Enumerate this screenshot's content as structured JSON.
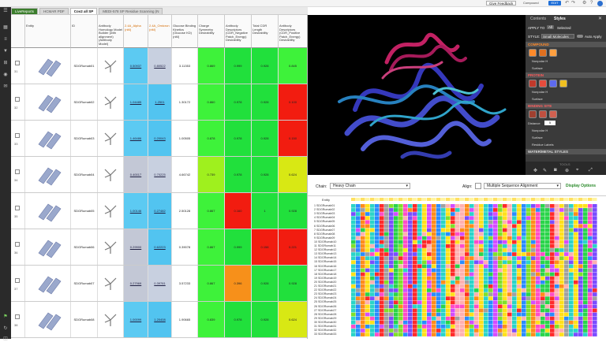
{
  "topbar": {
    "feedback": "Give Feedback",
    "edit": "EDIT",
    "compound_label": "Compound"
  },
  "tabs": [
    {
      "label": "LiveReports"
    },
    {
      "label": "HCMAR PDF"
    },
    {
      "label": "Cov2 all SP"
    },
    {
      "label": "MEDI-578 SP Residue Scanning (N"
    }
  ],
  "grid": {
    "headers": [
      "Entity",
      "ID",
      "Antibody Homology Model Builder (with alignment) (Antibody Model)",
      "2.4A_Alpha (nM)",
      "2.4A_Omicron (nM)",
      "Glucose Binding Kinetics (Glucose KD) (nM)",
      "Charge Symmetry Desirability",
      "Antibody Descriptors (CDR_Negative Patch_Energy) Desirability",
      "Total CDR Length Desirability",
      "Antibody Descriptors (CDR_Positive Patch_Energy) Desirability"
    ],
    "rows": [
      {
        "num": "31",
        "id": "SDGRumab01",
        "a": "0.50937",
        "b": "0.80522",
        "c": "3.11353",
        "d": "0.869",
        "e": "0.999",
        "f": "0.928",
        "g": "0.845"
      },
      {
        "num": "32",
        "id": "SDGRumab02",
        "a": "1.04485",
        "b": "1.2501",
        "c": "1.30172",
        "d": "0.860",
        "e": "0.978",
        "f": "0.928",
        "g": "0.100"
      },
      {
        "num": "33",
        "id": "SDGRumab03",
        "a": "1.46486",
        "b": "0.20043",
        "c": "1.00505",
        "d": "0.878",
        "e": "0.978",
        "f": "0.928",
        "g": "0.150"
      },
      {
        "num": "34",
        "id": "SDGRumab04",
        "a": "0.40017",
        "b": "0.70225",
        "c": "4.66742",
        "d": "0.739",
        "e": "0.978",
        "f": "0.928",
        "g": "0.624"
      },
      {
        "num": "35",
        "id": "SDGRumab05",
        "a": "1.00146",
        "b": "0.27482",
        "c": "2.50128",
        "d": "0.867",
        "e": "0.160",
        "f": "1",
        "g": "0.928"
      },
      {
        "num": "36",
        "id": "SDGRumab06",
        "a": "0.29900",
        "b": "0.62223",
        "c": "0.39078",
        "d": "0.867",
        "e": "0.999",
        "f": "0.158",
        "g": "0.221"
      },
      {
        "num": "37",
        "id": "SDGRumab07",
        "a": "0.27969",
        "b": "0.39781",
        "c": "3.57233",
        "d": "0.867",
        "e": "0.396",
        "f": "0.928",
        "g": "0.928"
      },
      {
        "num": "38",
        "id": "SDGRumab08",
        "a": "1.00099",
        "b": "1.20408",
        "c": "1.90665",
        "d": "0.839",
        "e": "0.978",
        "f": "0.928",
        "g": "0.624"
      }
    ]
  },
  "panel": {
    "tab_contents": "Contents",
    "tab_styles": "Styles",
    "apply_to": "APPLY TO",
    "apply_all": "All",
    "selected": "Selected",
    "style_label": "STYLE:",
    "style_value": "Small Molecules",
    "auto_apply": "Auto Apply",
    "compound": "COMPOUND",
    "protein": "PROTEIN",
    "binding_site": "BINDING SITE",
    "nonpolar": "Nonpolar H",
    "surface": "Surface",
    "distance_label": "Distance",
    "distance_value": "5",
    "residue_labels": "Residue Labels",
    "water": "WATER/METAL STYLES",
    "tools": "TOOLS"
  },
  "seq": {
    "chain_label": "Chain:",
    "chain_value": "Heavy Chain",
    "align_label": "Align:",
    "align_value": "Multiple Sequence Alignment",
    "display_options": "Display Options",
    "entity_header": "Entity",
    "names": [
      "SDGRumab01",
      "SDGRumab02",
      "SDGRumab03",
      "SDGRumab04",
      "SDGRumab05",
      "SDGRumab06",
      "SDGRumab07",
      "SDGRumab08",
      "SDGRumab09",
      "SDGRumab10",
      "SDGRumab11",
      "SDGRumab12",
      "SDGRumab13",
      "SDGRumab14",
      "SDGRumab15",
      "SDGRumab16",
      "SDGRumab17",
      "SDGRumab18",
      "SDGRumab19",
      "SDGRumab20",
      "SDGRumab21",
      "SDGRumab22",
      "SDGRumab23",
      "SDGRumab24",
      "SDGRumab25",
      "SDGRumab26",
      "SDGRumab27",
      "SDGRumab28",
      "SDGRumab29",
      "SDGRumab30",
      "SDGRumab31",
      "SDGRumab32",
      "SDGRumab33"
    ]
  }
}
